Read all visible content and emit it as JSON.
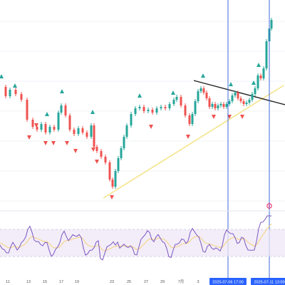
{
  "date_axis": {
    "labels": [
      "11",
      "13",
      "15",
      "17",
      "19",
      "23",
      "25",
      "27",
      "29",
      "7月",
      "3",
      "9",
      "11"
    ],
    "markers": [
      "2025-07-06 17:00",
      "2025-07-11 13:00"
    ]
  },
  "colors": {
    "up": "#26a69a",
    "down": "#ef5350",
    "wick": "#555555",
    "trendline_support": "#f5e48b",
    "trendline_resistance": "#222222",
    "vline": "#3f6ad8",
    "rsi_line": "#7e57c2",
    "rsi_ma": "#f5d17a",
    "rsi_band": "#ede7f6",
    "grid": "#f0f3fa",
    "alert": "#e91e63"
  },
  "icons": {
    "up_signal": "triangle-up",
    "down_signal": "triangle-down",
    "alert": "circle-dot"
  }
}
